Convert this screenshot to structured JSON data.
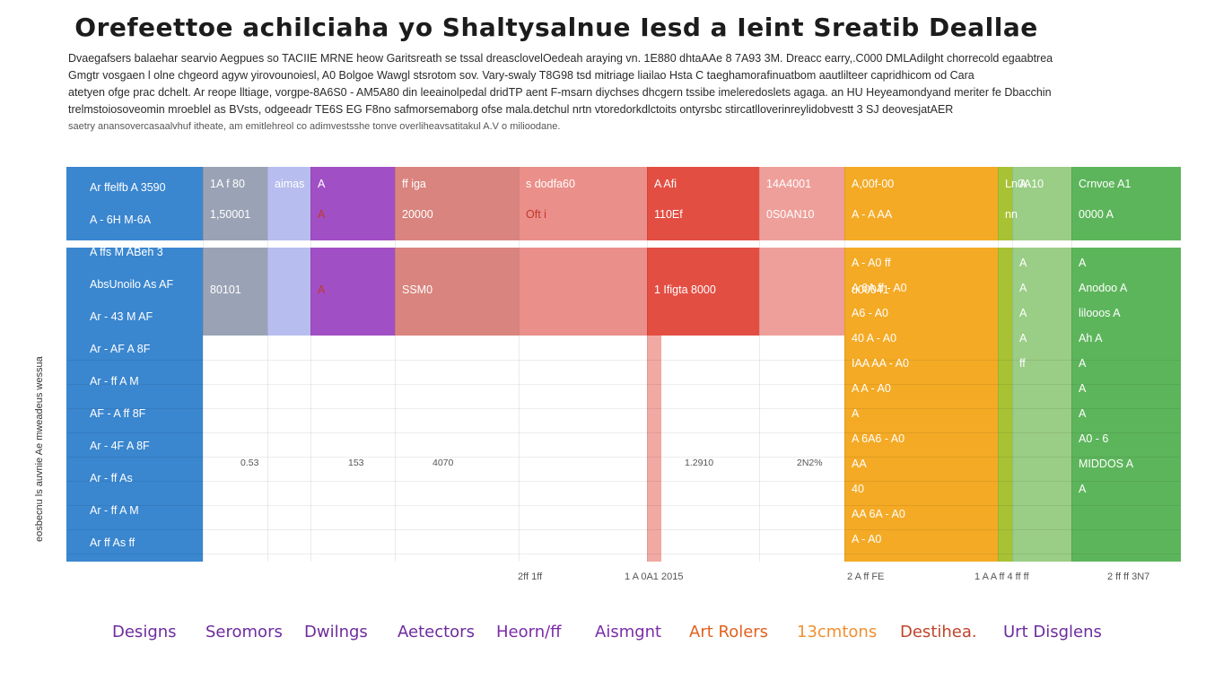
{
  "title": "Orefeettoe achilciaha yo Shaltysalnue Iesd a Ieint Sreatib Deallae",
  "intro_lines": [
    "Dvaegafsers balaehar searvio Aegpues so TACIIE MRNE heow Garitsreath se tssal dreasclovelOedeah araying vn. 1E880 dhtaAAe 8 7A93 3M. Dreacc earry,.C000 DMLAdilght chorrecold egaabtrea",
    "Gmgtr vosgaen l olne chgeord agyw yirovounoiesl, A0 Bolgoe Wawgl stsrotom sov. Vary-swaly T8G98 tsd mitriage liailao Hsta C taeghamorafinuatbom aautlilteer capridhicom od Cara",
    "atetyen ofge prac dchelt. Ar reope lltiage, vorgpe-8A6S0 - AM5A80 din leeainolpedal dridTP aent F-msarn diychses dhcgern tssibe imeleredoslets agaga. an HU Heyeamondyand meriter fe Dbacchin",
    "trelmstoiosoveomin mroeblel as BVsts, odgeeadr TE6S EG F8no safmorsemaborg ofse mala.detchul nrtn vtoredorkdlctoits ontyrsbc stircatlloverinreylidobvestt 3 SJ deovesjatAER",
    "saetry anansovercasaalvhuf itheate, am emitlehreol co adimvestsshe tonve overliheavsatitakul A.V o milioodane."
  ],
  "ylabel": "eosbecnu ls auvnie Ae mweadeus wessua",
  "chart_data": {
    "type": "heatmap",
    "columns": [
      {
        "color": "#3a86cf",
        "row_labels": [
          "Ar ffelfb A 3590",
          "A - 6H M-6A",
          "A ffs M ABeh 3",
          "AbsUnoilo As AF",
          "Ar - 43 M AF",
          "Ar - AF A 8F",
          "Ar - ff A M",
          "AF - A ff 8F",
          "Ar - 4F A 8F",
          "Ar - ff As",
          "Ar - ff A M",
          "Ar ff As ff"
        ]
      },
      {
        "color": "#9aa3b5",
        "top_labels": [
          "1A f 80",
          "1,50001",
          "80101"
        ],
        "value_label": "0.53"
      },
      {
        "color": "#b7bdee",
        "top_labels": [
          "aimas"
        ]
      },
      {
        "color": "#a14fc4",
        "top_labels": [
          "A",
          "A",
          "A"
        ],
        "value_label": "153"
      },
      {
        "color": "#d9847e",
        "top_labels": [
          "ff iga",
          "20000",
          "SSM0"
        ],
        "value_label": "4070"
      },
      {
        "color": "#ea8f8a",
        "top_labels": [
          "s dodfa60",
          "Oft i"
        ]
      },
      {
        "color": "#e34e43",
        "top_labels": [
          "A Afi",
          "110Ef",
          "1 Ifigta 8000"
        ],
        "value_label": "1.2910"
      },
      {
        "color": "#ee9f9a",
        "top_labels": [
          "14A4001",
          "0S0AN10"
        ],
        "value_label": "2N2%"
      },
      {
        "color": "#f4aa25",
        "top_labels": [
          "A,00f-00",
          "A - A AA",
          "u00041"
        ],
        "row_labels": [
          "A - A0 ff",
          "A 6A ff - A0",
          "A6 - A0",
          "40 A - A0",
          "IAA AA - A0",
          "A A - A0",
          "A",
          "A 6A6 - A0",
          "AA",
          "40",
          "AA 6A - A0",
          "A - A0"
        ]
      },
      {
        "color": "#a8c234",
        "top_labels": [
          "Ln0A10",
          "nn"
        ]
      },
      {
        "color": "#9acd85",
        "top_labels": [
          "A"
        ],
        "row_labels": [
          "A",
          "A",
          "A",
          "A",
          "ff"
        ]
      },
      {
        "color": "#5db55b",
        "top_labels": [
          "Crnvoe A1",
          "0000 A"
        ],
        "row_labels": [
          "A",
          "Anodoo A",
          "lilooos A",
          "Ah A",
          "A",
          "A",
          "A",
          "A0 - 6",
          "MIDDOS A",
          "A"
        ]
      }
    ],
    "x_ticks": [
      "2ff 1ff",
      "1 A 0A1 2015",
      "2 A ff FE",
      "1 A A ff 4 ff ff",
      "2 ff ff 3N7"
    ],
    "categories": [
      {
        "label": "Designs",
        "color": "#6d2c9e"
      },
      {
        "label": "Seromors",
        "color": "#6d2c9e"
      },
      {
        "label": "Dwilngs",
        "color": "#6d2c9e"
      },
      {
        "label": "Aetectors",
        "color": "#6d2c9e"
      },
      {
        "label": "Heorn/ff",
        "color": "#7a2ca8"
      },
      {
        "label": "Aismgnt",
        "color": "#7a2ca8"
      },
      {
        "label": "Art Rolers",
        "color": "#e2601e"
      },
      {
        "label": "13cmtons",
        "color": "#f09030"
      },
      {
        "label": "Destihea.",
        "color": "#c0442b"
      },
      {
        "label": "Urt Disglens",
        "color": "#6d2c9e"
      }
    ]
  }
}
